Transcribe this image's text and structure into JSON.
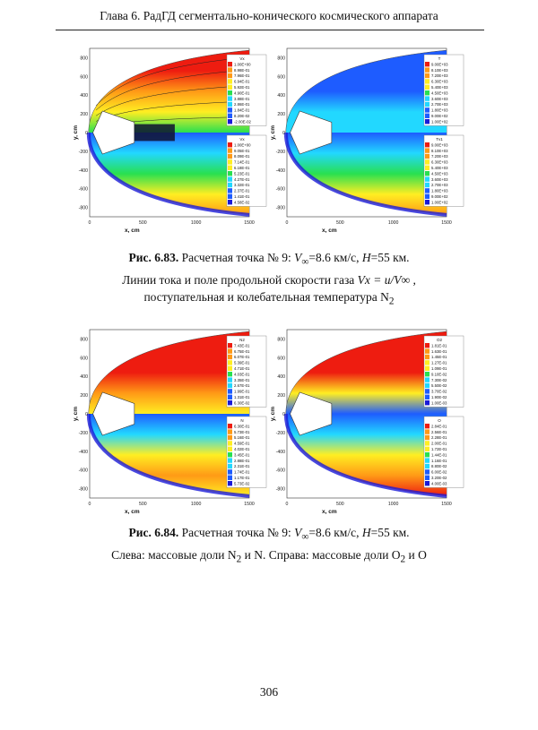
{
  "header": {
    "title": "Глава 6. РадГД сегментально-конического космического аппарата"
  },
  "axes": {
    "x_label": "x, cm",
    "y_label": "y, cm",
    "x_ticks": [
      "0",
      "500",
      "1000",
      "1500"
    ],
    "y_ticks": [
      "800",
      "600",
      "400",
      "200",
      "0",
      "-200",
      "-400",
      "-600",
      "-800"
    ]
  },
  "palette": {
    "dark_blue": "#1a1ad8",
    "blue": "#1e5cff",
    "cyan": "#22d8ff",
    "green": "#28e050",
    "yellow": "#ffee22",
    "orange": "#ff9a16",
    "red": "#ee1c10"
  },
  "figure_683": {
    "left": {
      "top_legend": {
        "title": "Vx",
        "values": [
          "1.00E+00",
          "8.98E-01",
          "7.96E-01",
          "6.94E-01",
          "5.92E-01",
          "4.90E-01",
          "3.88E-01",
          "2.86E-01",
          "1.84E-01",
          "8.20E-02",
          "-2.00E-02"
        ]
      },
      "bottom_legend": {
        "title": "Vx",
        "values": [
          "1.00E+00",
          "9.05E-01",
          "8.09E-01",
          "7.14E-01",
          "6.18E-01",
          "5.23E-01",
          "4.27E-01",
          "3.32E-01",
          "2.37E-01",
          "1.41E-01",
          "4.58E-02"
        ]
      }
    },
    "right": {
      "top_legend": {
        "title": "T",
        "values": [
          "9.00E+03",
          "8.10E+03",
          "7.20E+03",
          "6.30E+03",
          "5.40E+03",
          "4.50E+03",
          "3.60E+03",
          "2.70E+03",
          "1.80E+03",
          "9.00E+02",
          "1.00E+02"
        ]
      },
      "bottom_legend": {
        "title": "Tv1",
        "values": [
          "9.00E+03",
          "8.10E+03",
          "7.20E+03",
          "6.30E+03",
          "5.40E+03",
          "4.50E+03",
          "3.60E+03",
          "2.70E+03",
          "1.80E+03",
          "9.00E+02",
          "1.00E+02"
        ]
      }
    },
    "caption": {
      "label": "Рис. 6.83.",
      "line1_text": "Расчетная точка № 9:",
      "v_symbol": "V",
      "v_sub": "∞",
      "speed": "=8.6 км/с,",
      "h_symbol": "H",
      "altitude": "=55 км.",
      "line2_text": "Линии тока и поле продольной скорости газа",
      "formula": "Vx = u/V∞ ,",
      "line3_text": "поступательная и колебательная температура",
      "n2": "N",
      "n2_sub": "2"
    }
  },
  "figure_684": {
    "left": {
      "top_legend": {
        "title": "N2",
        "values": [
          "7.43E-01",
          "6.75E-01",
          "6.07E-01",
          "5.39E-01",
          "4.71E-01",
          "4.03E-01",
          "3.35E-01",
          "2.67E-01",
          "1.99E-01",
          "1.31E-01",
          "6.30E-02"
        ]
      },
      "bottom_legend": {
        "title": "N",
        "values": [
          "6.30E-01",
          "5.73E-01",
          "5.16E-01",
          "4.59E-01",
          "4.02E-01",
          "3.45E-01",
          "2.88E-01",
          "2.31E-01",
          "1.74E-01",
          "1.17E-01",
          "5.73E-02"
        ]
      }
    },
    "right": {
      "top_legend": {
        "title": "O2",
        "values": [
          "1.81E-01",
          "1.63E-01",
          "1.45E-01",
          "1.27E-01",
          "1.09E-01",
          "9.10E-02",
          "7.30E-02",
          "5.50E-02",
          "3.70E-02",
          "1.90E-02",
          "1.00E-03"
        ]
      },
      "bottom_legend": {
        "title": "O",
        "values": [
          "2.84E-01",
          "2.56E-01",
          "2.28E-01",
          "2.00E-01",
          "1.72E-01",
          "1.44E-01",
          "1.16E-01",
          "8.80E-02",
          "6.00E-02",
          "3.20E-02",
          "4.00E-03"
        ]
      }
    },
    "caption": {
      "label": "Рис. 6.84.",
      "line1_text": "Расчетная точка № 9:",
      "v_symbol": "V",
      "v_sub": "∞",
      "speed": "=8.6 км/с,",
      "h_symbol": "H",
      "altitude": "=55 км.",
      "line2_text_a": "Слева: массовые доли N",
      "line2_sub_a": "2",
      "line2_text_b": " и N. Справа: массовые доли O",
      "line2_sub_b": "2",
      "line2_text_c": " и O"
    }
  },
  "footer": {
    "page_number": "306"
  }
}
